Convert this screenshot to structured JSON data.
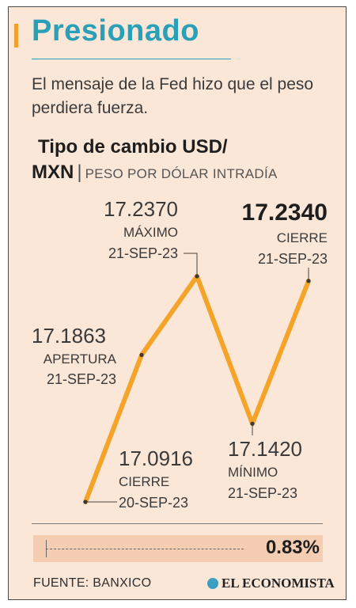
{
  "header": {
    "title": "Presionado",
    "subtitle": "El mensaje de la Fed hizo que el peso perdiera fuerza."
  },
  "chart_title": {
    "line1": "Tipo de cambio USD/",
    "line2": "MXN",
    "separator": "|",
    "unit": "PESO POR DÓLAR INTRADÍA"
  },
  "chart_data": {
    "type": "line",
    "title": "Tipo de cambio USD/MXN",
    "ylabel": "PESO POR DÓLAR INTRADÍA",
    "series": [
      {
        "points": [
          {
            "value": 17.0916,
            "value_label": "17.0916",
            "label": "CIERRE",
            "date": "20-SEP-23"
          },
          {
            "value": 17.1863,
            "value_label": "17.1863",
            "label": "APERTURA",
            "date": "21-SEP-23"
          },
          {
            "value": 17.237,
            "value_label": "17.2370",
            "label": "MÁXIMO",
            "date": "21-SEP-23"
          },
          {
            "value": 17.142,
            "value_label": "17.1420",
            "label": "MÍNIMO",
            "date": "21-SEP-23"
          },
          {
            "value": 17.234,
            "value_label": "17.2340",
            "label": "CIERRE",
            "date": "21-SEP-23"
          }
        ]
      }
    ],
    "ylim": [
      17.0916,
      17.237
    ],
    "line_color": "#f5a42a",
    "grid": false
  },
  "change": {
    "value": "0.83%"
  },
  "footer": {
    "source": "FUENTE: BANXICO",
    "brand": "EL ECONOMISTA"
  },
  "colors": {
    "title": "#2aa0b8",
    "background": "#fbe7d8",
    "line": "#f5a42a",
    "accent": "#f3a02a"
  }
}
